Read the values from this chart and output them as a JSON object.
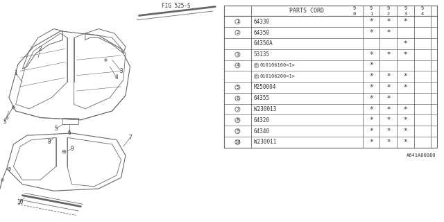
{
  "bg_color": "#ffffff",
  "line_color": "#666666",
  "text_color": "#333333",
  "fig_label": "A641A00080",
  "fig_ref": "FIG 525-S",
  "table": {
    "header_col": "PARTS CORD",
    "year_cols": [
      "9\n0",
      "9\n1",
      "9\n2",
      "9\n3",
      "9\n4"
    ],
    "rows": [
      {
        "num": "1",
        "part": "64330",
        "b": false,
        "marks": [
          "*",
          "*",
          "*",
          "",
          ""
        ]
      },
      {
        "num": "2",
        "part": "64350",
        "b": false,
        "marks": [
          "*",
          "*",
          "",
          "",
          ""
        ]
      },
      {
        "num": "",
        "part": "64350A",
        "b": false,
        "marks": [
          "",
          "",
          "*",
          "",
          ""
        ]
      },
      {
        "num": "3",
        "part": "53135",
        "b": false,
        "marks": [
          "*",
          "*",
          "*",
          "",
          ""
        ]
      },
      {
        "num": "4",
        "part": "010106160<1>",
        "b": true,
        "marks": [
          "*",
          "",
          "",
          "",
          ""
        ]
      },
      {
        "num": "4",
        "part": "010106200<1>",
        "b": true,
        "marks": [
          "*",
          "*",
          "*",
          "",
          ""
        ]
      },
      {
        "num": "5",
        "part": "M250004",
        "b": false,
        "marks": [
          "*",
          "*",
          "*",
          "",
          ""
        ]
      },
      {
        "num": "6",
        "part": "64355",
        "b": false,
        "marks": [
          "*",
          "*",
          "",
          "",
          ""
        ]
      },
      {
        "num": "7",
        "part": "W230013",
        "b": false,
        "marks": [
          "*",
          "*",
          "*",
          "",
          ""
        ]
      },
      {
        "num": "8",
        "part": "64320",
        "b": false,
        "marks": [
          "*",
          "*",
          "*",
          "",
          ""
        ]
      },
      {
        "num": "9",
        "part": "64340",
        "b": false,
        "marks": [
          "*",
          "*",
          "*",
          "",
          ""
        ]
      },
      {
        "num": "10",
        "part": "W230011",
        "b": false,
        "marks": [
          "*",
          "*",
          "*",
          "",
          ""
        ]
      }
    ],
    "num_show": [
      true,
      true,
      false,
      true,
      true,
      false,
      true,
      true,
      true,
      true,
      true,
      true
    ]
  }
}
